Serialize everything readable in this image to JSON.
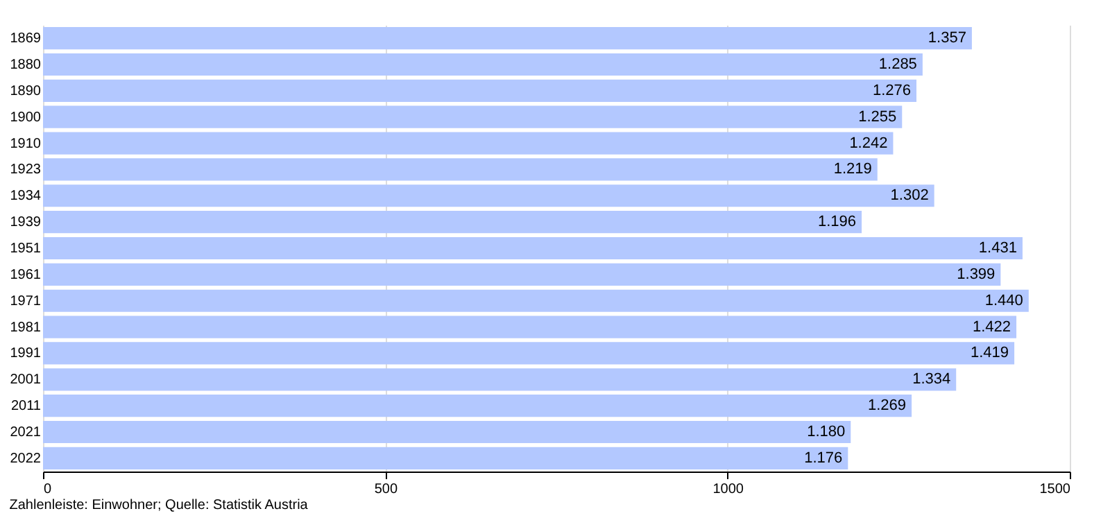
{
  "chart_data": {
    "type": "bar",
    "orientation": "horizontal",
    "categories": [
      "1869",
      "1880",
      "1890",
      "1900",
      "1910",
      "1923",
      "1934",
      "1939",
      "1951",
      "1961",
      "1971",
      "1981",
      "1991",
      "2001",
      "2011",
      "2021",
      "2022"
    ],
    "values": [
      1357,
      1285,
      1276,
      1255,
      1242,
      1219,
      1302,
      1196,
      1431,
      1399,
      1440,
      1422,
      1419,
      1334,
      1269,
      1180,
      1176
    ],
    "value_labels": [
      "1.357",
      "1.285",
      "1.276",
      "1.255",
      "1.242",
      "1.219",
      "1.302",
      "1.196",
      "1.431",
      "1.399",
      "1.440",
      "1.422",
      "1.419",
      "1.334",
      "1.269",
      "1.180",
      "1.176"
    ],
    "color": "#b3c8ff",
    "xlim": [
      0,
      1500
    ],
    "xticks": [
      0,
      500,
      1000,
      1500
    ],
    "grid": "x",
    "annotations": [
      "Zahlenleiste: Einwohner; Quelle: Statistik Austria"
    ]
  }
}
